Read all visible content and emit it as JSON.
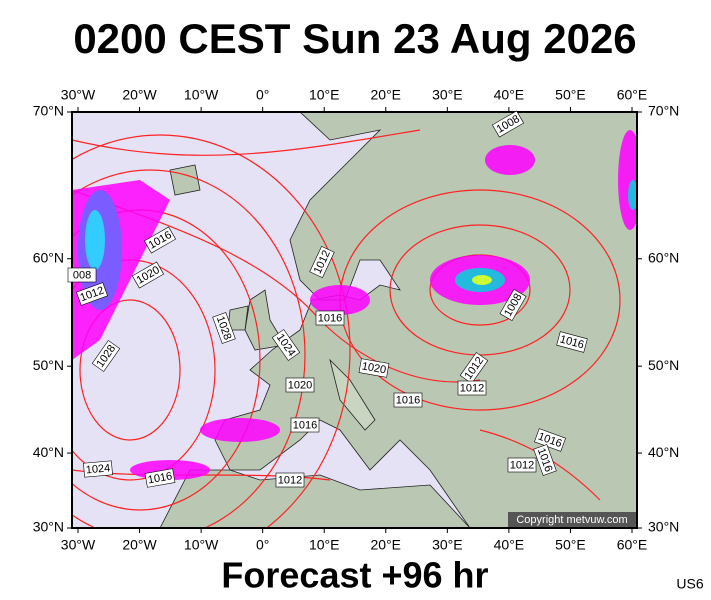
{
  "title": "0200 CEST Sun 23 Aug 2026",
  "footer": "Forecast +96 hr",
  "model_code": "US6",
  "copyright": "Copyright metvuw.com",
  "map": {
    "lon_ticks": [
      {
        "value": -30,
        "label": "30°W"
      },
      {
        "value": -20,
        "label": "20°W"
      },
      {
        "value": -10,
        "label": "10°W"
      },
      {
        "value": 0,
        "label": "0°"
      },
      {
        "value": 10,
        "label": "10°E"
      },
      {
        "value": 20,
        "label": "20°E"
      },
      {
        "value": 30,
        "label": "30°E"
      },
      {
        "value": 40,
        "label": "40°E"
      },
      {
        "value": 50,
        "label": "50°E"
      },
      {
        "value": 60,
        "label": "60°E"
      }
    ],
    "lat_ticks": [
      {
        "value": 30,
        "label": "30°N"
      },
      {
        "value": 40,
        "label": "40°N"
      },
      {
        "value": 50,
        "label": "50°N"
      },
      {
        "value": 60,
        "label": "60°N"
      },
      {
        "value": 70,
        "label": "70°N"
      }
    ],
    "isobar_labels": [
      "1008",
      "1016",
      "1020",
      "008",
      "1012",
      "1012",
      "1028",
      "1024",
      "1016",
      "1008",
      "1016",
      "1028",
      "1020",
      "1012",
      "1012",
      "1020",
      "1016",
      "1016",
      "1016",
      "1016",
      "1012",
      "1024",
      "1016",
      "1012"
    ]
  }
}
